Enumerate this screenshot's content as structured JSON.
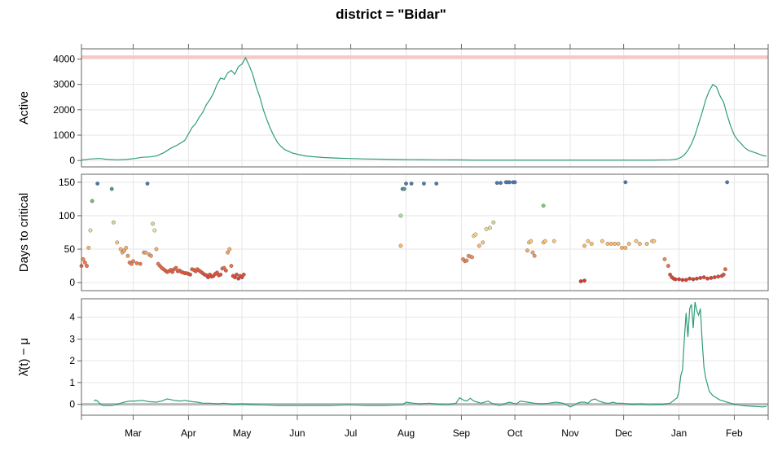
{
  "chart_data": {
    "type": "line",
    "title": "district = \"Bidar\"",
    "x_tick_labels": [
      "Mar",
      "Apr",
      "May",
      "Jun",
      "Jul",
      "Aug",
      "Sep",
      "Oct",
      "Nov",
      "Dec",
      "Jan",
      "Feb"
    ],
    "x_tick_days": [
      29,
      60,
      90,
      121,
      151,
      182,
      213,
      243,
      274,
      304,
      335,
      366
    ],
    "x_range_days": [
      0,
      385
    ],
    "panels": [
      {
        "id": "active",
        "ylabel": "Active",
        "ylim": [
          -250,
          4400
        ],
        "yticks": [
          0,
          1000,
          2000,
          3000,
          4000
        ],
        "ytick_labels": [
          "0",
          "1000",
          "2000",
          "3000",
          "4000"
        ],
        "grid": true,
        "reference_line": {
          "y": 4080,
          "color": "#f8c8c8"
        },
        "series": [
          {
            "color": "#2e9d77",
            "x": [
              0,
              5,
              10,
              14,
              20,
              26,
              30,
              34,
              38,
              42,
              46,
              50,
              54,
              58,
              60,
              62,
              64,
              66,
              68,
              70,
              72,
              74,
              76,
              78,
              80,
              82,
              84,
              86,
              88,
              90,
              92,
              94,
              96,
              98,
              100,
              102,
              104,
              106,
              108,
              110,
              112,
              114,
              116,
              118,
              122,
              126,
              130,
              136,
              142,
              150,
              160,
              170,
              180,
              190,
              200,
              210,
              220,
              230,
              240,
              250,
              260,
              270,
              280,
              290,
              300,
              310,
              320,
              330,
              334,
              336,
              338,
              340,
              342,
              344,
              346,
              348,
              350,
              352,
              354,
              356,
              358,
              360,
              362,
              364,
              366,
              368,
              370,
              372,
              374,
              376,
              378,
              380,
              382,
              384
            ],
            "y": [
              20,
              60,
              80,
              50,
              30,
              50,
              80,
              130,
              140,
              180,
              300,
              480,
              620,
              800,
              1050,
              1300,
              1450,
              1700,
              1900,
              2200,
              2400,
              2650,
              3000,
              3250,
              3200,
              3450,
              3550,
              3400,
              3700,
              3800,
              4050,
              3750,
              3400,
              2900,
              2500,
              2000,
              1600,
              1250,
              950,
              700,
              550,
              430,
              370,
              300,
              230,
              180,
              150,
              120,
              100,
              80,
              60,
              50,
              40,
              35,
              30,
              25,
              20,
              20,
              20,
              20,
              20,
              20,
              20,
              20,
              20,
              20,
              20,
              30,
              60,
              120,
              220,
              400,
              650,
              1000,
              1450,
              1900,
              2400,
              2750,
              3000,
              2900,
              2550,
              2300,
              1800,
              1350,
              1000,
              800,
              650,
              500,
              400,
              350,
              300,
              250,
              200,
              170
            ]
          }
        ]
      },
      {
        "id": "days",
        "ylabel": "Days to critical",
        "ylim": [
          -12,
          162
        ],
        "yticks": [
          0,
          50,
          100,
          150
        ],
        "ytick_labels": [
          "0",
          "50",
          "100",
          "150"
        ],
        "grid": true,
        "palette": "RdYlBu (low = red, high = blue)",
        "points": {
          "x": [
            0,
            1,
            2,
            3,
            4,
            5,
            6,
            9,
            17,
            18,
            20,
            22,
            23,
            24,
            25,
            26,
            27,
            28,
            29,
            31,
            33,
            35,
            36,
            37,
            38,
            39,
            40,
            41,
            42,
            43,
            44,
            45,
            46,
            47,
            48,
            49,
            50,
            51,
            52,
            53,
            54,
            55,
            56,
            57,
            58,
            59,
            60,
            61,
            62,
            63,
            64,
            65,
            66,
            67,
            68,
            69,
            70,
            71,
            72,
            73,
            74,
            75,
            76,
            77,
            78,
            79,
            80,
            81,
            82,
            83,
            84,
            85,
            86,
            87,
            88,
            89,
            90,
            91,
            179,
            180,
            181,
            182,
            185,
            192,
            199,
            214,
            215,
            216,
            217,
            218,
            219,
            220,
            221,
            223,
            225,
            227,
            229,
            231,
            233,
            235,
            238,
            239,
            240,
            242,
            243,
            250,
            251,
            252,
            253,
            254,
            259,
            260,
            280,
            282,
            284,
            286,
            292,
            295,
            297,
            299,
            301,
            303,
            305,
            307,
            311,
            313,
            317,
            320,
            321,
            327,
            329,
            330,
            331,
            332,
            333,
            335,
            337,
            339,
            341,
            343,
            345,
            347,
            349,
            351,
            353,
            355,
            357,
            359,
            360,
            361,
            362,
            179,
            259,
            265,
            282,
            305
          ],
          "y": [
            25,
            35,
            30,
            25,
            52,
            78,
            122,
            148,
            140,
            90,
            60,
            50,
            45,
            48,
            52,
            40,
            30,
            28,
            32,
            29,
            28,
            45,
            45,
            148,
            42,
            40,
            88,
            78,
            50,
            28,
            25,
            22,
            20,
            18,
            16,
            17,
            19,
            16,
            20,
            22,
            17,
            18,
            16,
            15,
            14,
            14,
            13,
            12,
            20,
            19,
            17,
            20,
            18,
            16,
            14,
            12,
            11,
            8,
            12,
            9,
            10,
            13,
            15,
            11,
            12,
            21,
            22,
            18,
            45,
            50,
            25,
            10,
            8,
            12,
            6,
            10,
            8,
            12,
            55,
            140,
            140,
            148,
            148,
            148,
            148,
            35,
            32,
            33,
            40,
            39,
            38,
            70,
            72,
            55,
            60,
            80,
            82,
            90,
            149,
            149,
            150,
            150,
            150,
            150,
            150,
            48,
            60,
            62,
            45,
            40,
            60,
            62,
            2,
            3,
            62,
            58,
            62,
            58,
            58,
            58,
            58,
            52,
            52,
            58,
            62,
            58,
            58,
            62,
            62,
            35,
            25,
            12,
            8,
            6,
            5,
            5,
            4,
            4,
            6,
            5,
            6,
            7,
            8,
            6,
            7,
            8,
            9,
            10,
            12,
            20,
            150,
            100,
            115,
            62,
            55,
            150
          ]
        }
      },
      {
        "id": "lambda",
        "ylabel": "λ̂(t) − μ",
        "ylim": [
          -0.5,
          4.85
        ],
        "yticks": [
          0,
          1,
          2,
          3,
          4
        ],
        "ytick_labels": [
          "0",
          "1",
          "2",
          "3",
          "4"
        ],
        "grid": true,
        "reference_line": {
          "y": 0,
          "color": "#b8b8b8"
        },
        "series": [
          {
            "color": "#2e9d77",
            "x": [
              7,
              8,
              9,
              10,
              12,
              14,
              17,
              20,
              24,
              27,
              30,
              34,
              38,
              42,
              45,
              48,
              50,
              52,
              55,
              58,
              60,
              62,
              65,
              68,
              72,
              76,
              80,
              85,
              90,
              95,
              100,
              110,
              120,
              130,
              140,
              150,
              160,
              170,
              180,
              182,
              186,
              190,
              195,
              200,
              205,
              210,
              212,
              214,
              216,
              218,
              220,
              222,
              224,
              226,
              228,
              230,
              232,
              234,
              236,
              238,
              240,
              242,
              244,
              246,
              250,
              254,
              258,
              262,
              266,
              270,
              272,
              274,
              276,
              278,
              280,
              282,
              284,
              286,
              288,
              290,
              292,
              294,
              296,
              298,
              300,
              303,
              306,
              310,
              314,
              318,
              322,
              326,
              330,
              334,
              335,
              336,
              337,
              338,
              339,
              340,
              341,
              342,
              343,
              344,
              345,
              346,
              347,
              348,
              349,
              350,
              351,
              352,
              354,
              356,
              358,
              360,
              362,
              364,
              366,
              368,
              370,
              374,
              378,
              382,
              384
            ],
            "y": [
              0.15,
              0.2,
              0.15,
              0.05,
              -0.05,
              -0.05,
              -0.05,
              0.0,
              0.1,
              0.15,
              0.15,
              0.18,
              0.12,
              0.1,
              0.15,
              0.25,
              0.22,
              0.18,
              0.15,
              0.18,
              0.15,
              0.12,
              0.1,
              0.05,
              0.05,
              0.02,
              0.05,
              0.0,
              0.02,
              0.0,
              -0.02,
              -0.05,
              -0.05,
              -0.05,
              -0.05,
              -0.02,
              -0.05,
              -0.05,
              -0.02,
              0.1,
              0.05,
              0.02,
              0.05,
              0.0,
              -0.02,
              0.05,
              0.3,
              0.2,
              0.15,
              0.28,
              0.15,
              0.1,
              0.05,
              0.1,
              0.15,
              0.05,
              0.0,
              -0.05,
              -0.02,
              0.05,
              0.1,
              0.05,
              0.02,
              0.15,
              0.1,
              0.05,
              0.02,
              0.05,
              0.1,
              0.05,
              -0.02,
              -0.12,
              -0.05,
              0.05,
              0.1,
              0.1,
              0.05,
              0.2,
              0.25,
              0.15,
              0.1,
              0.05,
              0.05,
              0.1,
              0.05,
              0.05,
              0.02,
              0.0,
              0.02,
              -0.02,
              0.0,
              0.0,
              0.05,
              0.3,
              0.6,
              1.3,
              1.6,
              3.0,
              4.2,
              3.1,
              4.4,
              4.6,
              3.5,
              4.7,
              4.3,
              4.1,
              4.4,
              2.9,
              1.7,
              1.2,
              0.9,
              0.6,
              0.4,
              0.3,
              0.2,
              0.15,
              0.1,
              0.05,
              0.0,
              -0.02,
              -0.05,
              -0.08,
              -0.1,
              -0.12,
              -0.1
            ]
          }
        ]
      }
    ]
  }
}
